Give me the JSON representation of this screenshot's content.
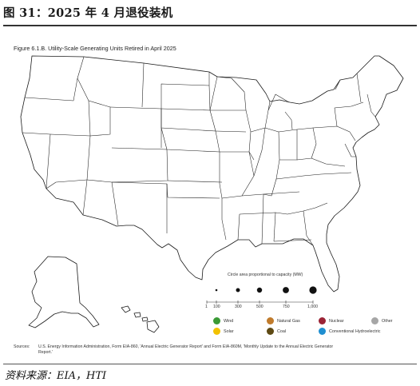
{
  "report": {
    "title": "图 31：2025 年 4 月退役装机",
    "source": "资料来源：EIA，HTI"
  },
  "figure": {
    "caption": "Figure 6.1.B. Utility-Scale Generating Units Retired in April 2025",
    "sources_label": "Sources:",
    "sources_text": "U.S. Energy Information Administration, Form EIA-860, 'Annual Electric Generator Report' and Form EIA-860M, 'Monthly Update to the Annual Electric Generator Report.'"
  },
  "size_legend": {
    "title": "Circle area proportional to capacity (MW)",
    "ticks": [
      "1",
      "100",
      "300",
      "500",
      "750",
      "1,000"
    ]
  },
  "fuel_legend": [
    {
      "label": "Wind",
      "color": "#3a9a35"
    },
    {
      "label": "Natural Gas",
      "color": "#c07b2c"
    },
    {
      "label": "Nuclear",
      "color": "#9b2335"
    },
    {
      "label": "Other",
      "color": "#a6a6a6"
    },
    {
      "label": "Solar",
      "color": "#f2c200"
    },
    {
      "label": "Coal",
      "color": "#5e4a14"
    },
    {
      "label": "Conventional Hydroelectric",
      "color": "#1f8fd1"
    }
  ]
}
